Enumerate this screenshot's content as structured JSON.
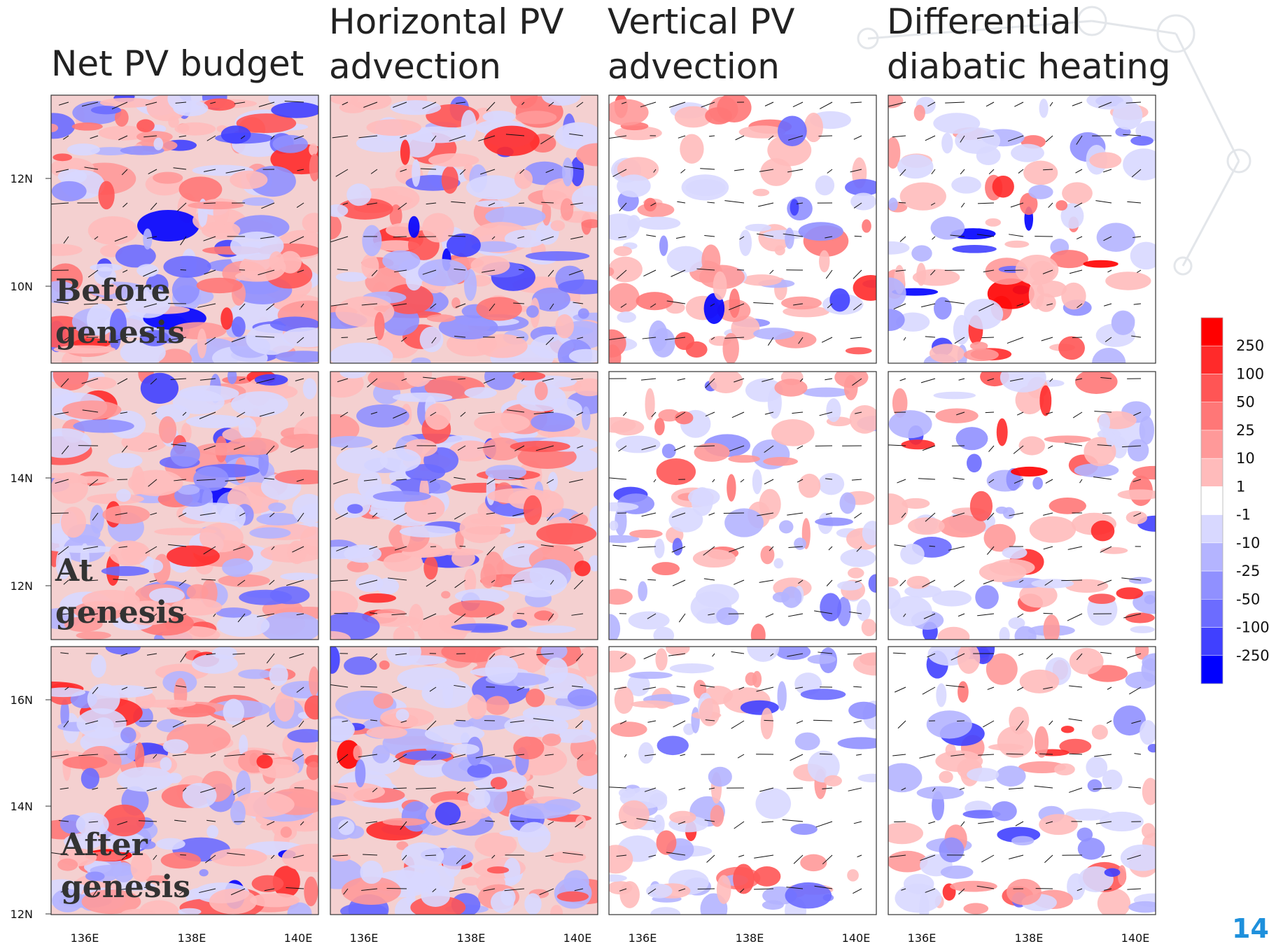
{
  "columns": [
    {
      "title": [
        "Net PV budget"
      ]
    },
    {
      "title": [
        "Horizontal PV",
        "advection"
      ]
    },
    {
      "title": [
        "Vertical PV",
        "advection"
      ]
    },
    {
      "title": [
        "Differential",
        "diabatic heating"
      ]
    }
  ],
  "rows": [
    {
      "label": [
        "Before",
        "genesis"
      ],
      "yticks": [
        "12N",
        "10N"
      ]
    },
    {
      "label": [
        "At",
        "genesis"
      ],
      "yticks": [
        "14N",
        "12N"
      ]
    },
    {
      "label": [
        "After",
        "genesis"
      ],
      "yticks": [
        "16N",
        "14N",
        "12N"
      ]
    }
  ],
  "xticks": [
    "136E",
    "138E",
    "140E"
  ],
  "colorbar": {
    "labels": [
      "250",
      "100",
      "50",
      "25",
      "10",
      "1",
      "-1",
      "-10",
      "-25",
      "-50",
      "-100",
      "-250"
    ],
    "colors": [
      "#ff0000",
      "#ff2a2a",
      "#ff5555",
      "#ff7777",
      "#ff9999",
      "#ffbbbb",
      "#ffffff",
      "#d8d8ff",
      "#b4b4ff",
      "#9090ff",
      "#6c6cff",
      "#4040ff",
      "#0000ff"
    ]
  },
  "page_number": "14"
}
